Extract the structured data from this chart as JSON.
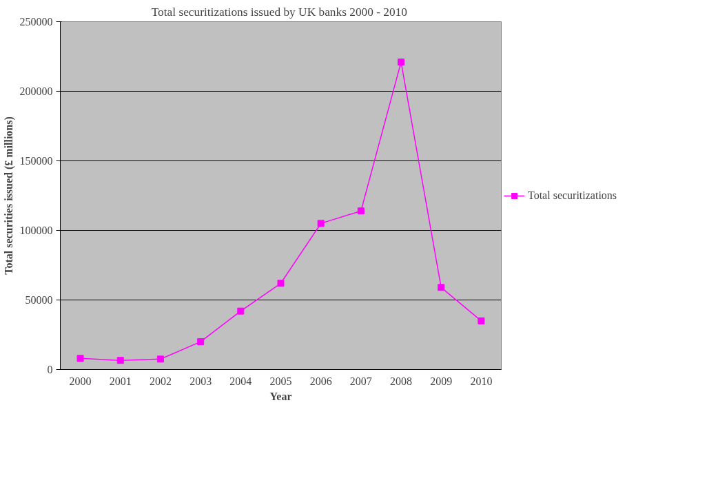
{
  "chart_data": {
    "type": "line",
    "title": "Total securitizations issued by UK banks  2000 - 2010",
    "xlabel": "Year",
    "ylabel": "Total securities issued (£ millions)",
    "categories": [
      "2000",
      "2001",
      "2002",
      "2003",
      "2004",
      "2005",
      "2006",
      "2007",
      "2008",
      "2009",
      "2010"
    ],
    "series": [
      {
        "name": "Total securitizations",
        "color": "#ff00ff",
        "values": [
          8000,
          6600,
          7500,
          20000,
          42000,
          62000,
          105000,
          114000,
          221000,
          59000,
          35000
        ]
      }
    ],
    "ylim": [
      0,
      250000
    ],
    "yticks": [
      0,
      50000,
      100000,
      150000,
      200000,
      250000
    ],
    "grid": "y",
    "legend": "right",
    "marker": "square",
    "line_style": "solid"
  }
}
